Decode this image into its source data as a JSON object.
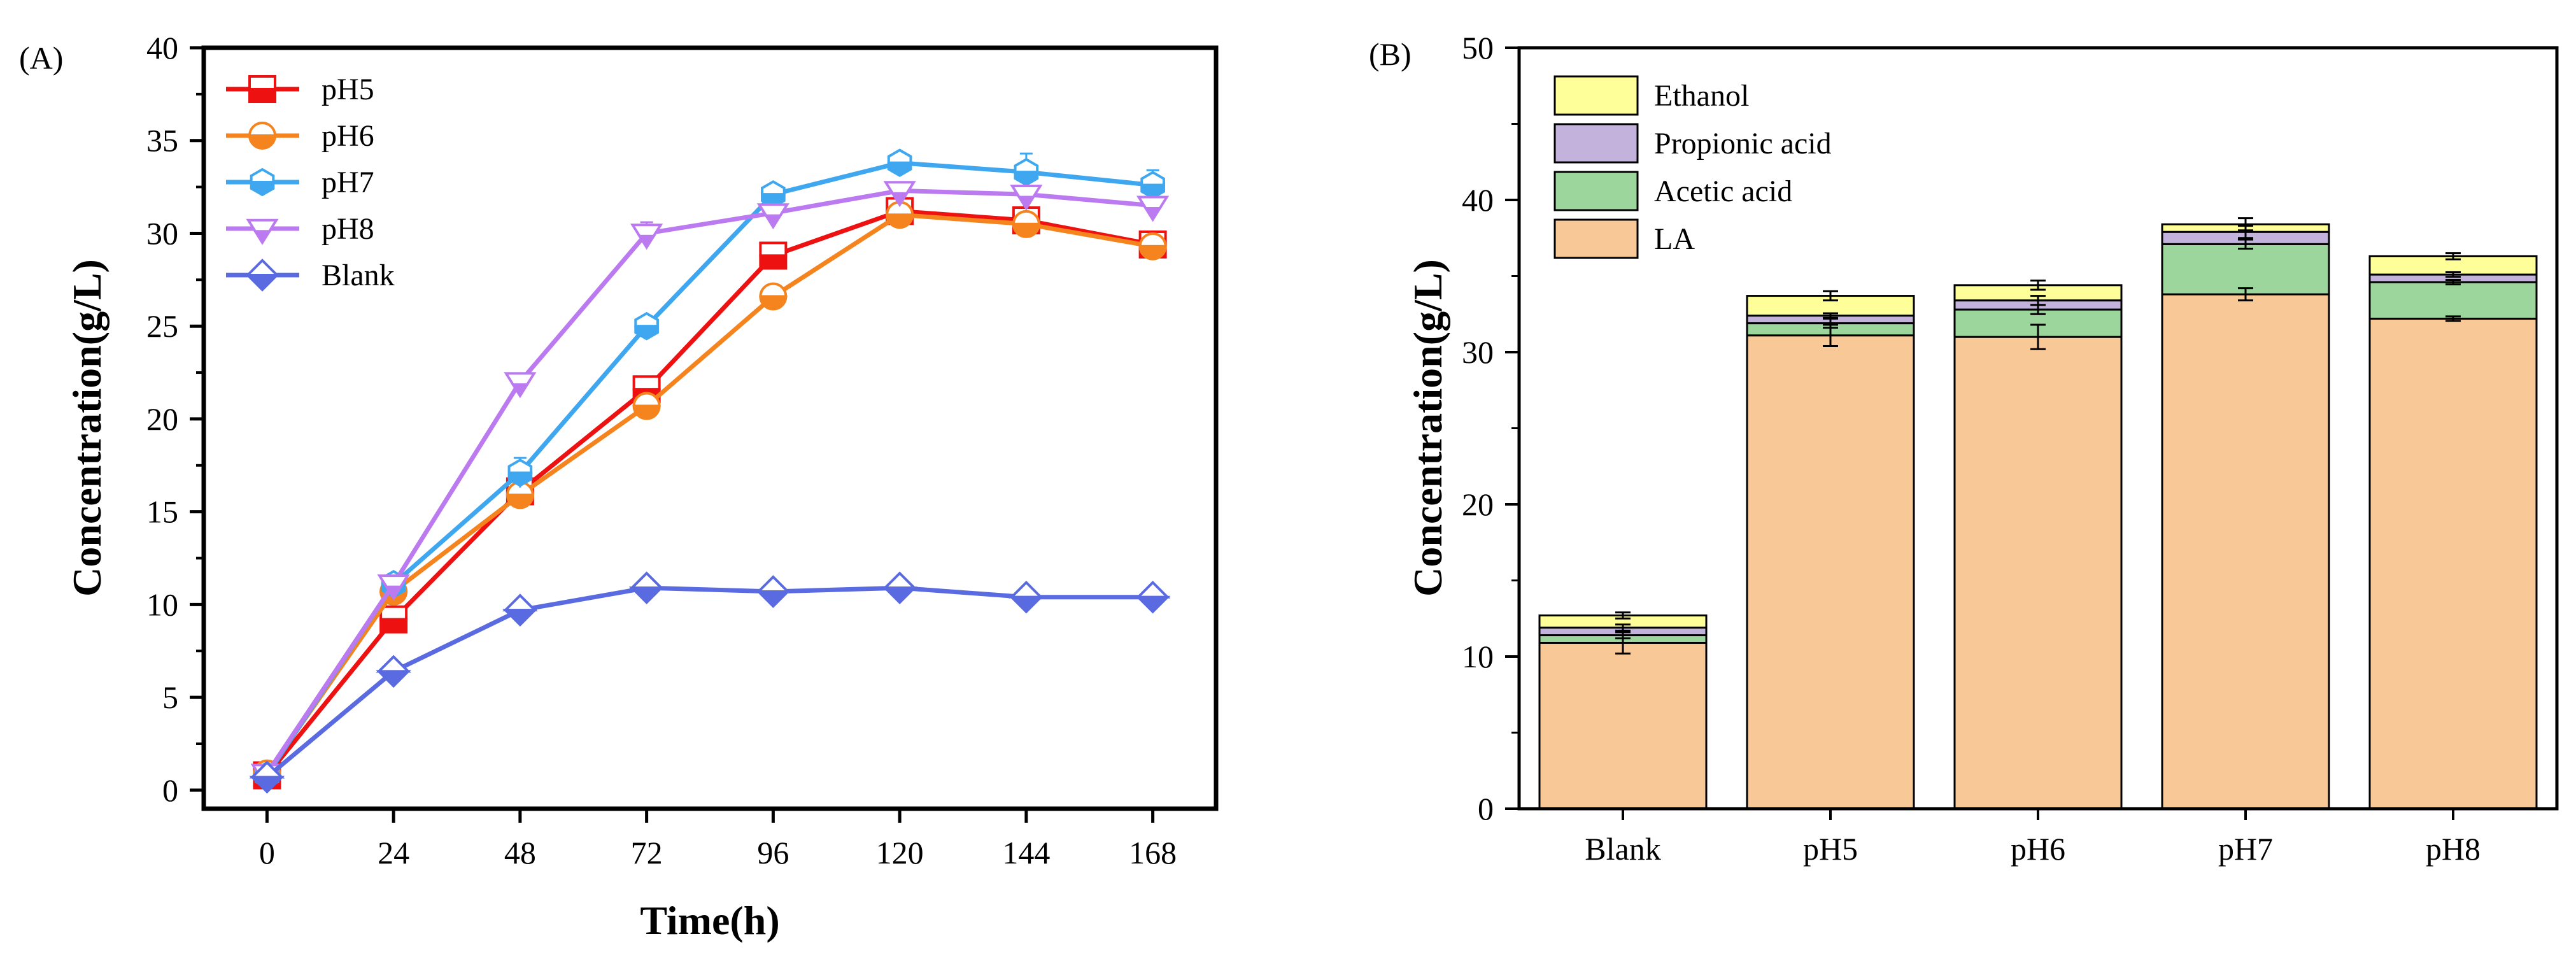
{
  "chart_data": [
    {
      "type": "line",
      "panel_label": "(A)",
      "xlabel": "Time(h)",
      "ylabel": "Concentration(g/L)",
      "x": [
        0,
        24,
        48,
        72,
        96,
        120,
        144,
        168
      ],
      "xticks": [
        "0",
        "24",
        "48",
        "72",
        "96",
        "120",
        "144",
        "168"
      ],
      "xlim": [
        -12,
        180
      ],
      "ylim": [
        -1,
        40
      ],
      "yticks": [
        "0",
        "5",
        "10",
        "15",
        "20",
        "25",
        "30",
        "35",
        "40"
      ],
      "legend_position": "top-left",
      "series": [
        {
          "name": "pH5",
          "color": "#ee1111",
          "marker": "square",
          "values": [
            0.8,
            9.2,
            16.1,
            21.6,
            28.8,
            31.2,
            30.7,
            29.4
          ],
          "errors": [
            0.2,
            0.3,
            0.4,
            0.4,
            0.3,
            0.5,
            0.5,
            0.4
          ]
        },
        {
          "name": "pH6",
          "color": "#f5841f",
          "marker": "circle",
          "values": [
            0.9,
            10.7,
            15.9,
            20.7,
            26.6,
            31.0,
            30.5,
            29.3
          ],
          "errors": [
            0.2,
            0.3,
            0.4,
            0.4,
            0.3,
            0.5,
            0.5,
            0.4
          ]
        },
        {
          "name": "pH7",
          "color": "#3ea7f0",
          "marker": "hexagon",
          "values": [
            0.8,
            11.1,
            17.1,
            25.0,
            32.1,
            33.8,
            33.3,
            32.6
          ],
          "errors": [
            0.2,
            0.3,
            0.8,
            0.4,
            0.4,
            0.4,
            1.0,
            0.8
          ]
        },
        {
          "name": "pH8",
          "color": "#bb7af0",
          "marker": "triangle-down",
          "values": [
            0.9,
            11.1,
            22.0,
            30.0,
            31.1,
            32.3,
            32.1,
            31.5
          ],
          "errors": [
            0.2,
            0.3,
            0.3,
            0.6,
            0.4,
            0.4,
            0.4,
            0.4
          ]
        },
        {
          "name": "Blank",
          "color": "#5a6ae0",
          "marker": "diamond",
          "values": [
            0.7,
            6.4,
            9.7,
            10.9,
            10.7,
            10.9,
            10.4,
            10.4
          ],
          "errors": [
            0.2,
            0.2,
            0.3,
            0.3,
            0.3,
            0.5,
            0.3,
            0.3
          ]
        }
      ]
    },
    {
      "type": "stacked-bar",
      "panel_label": "(B)",
      "xlabel": "",
      "ylabel": "Concentration(g/L)",
      "categories": [
        "Blank",
        "pH5",
        "pH6",
        "pH7",
        "pH8"
      ],
      "ylim": [
        0,
        50
      ],
      "yticks": [
        "0",
        "10",
        "20",
        "30",
        "40",
        "50"
      ],
      "legend_position": "top-left",
      "legend_order": [
        "Ethanol",
        "Propionic acid",
        "Acetic acid",
        "LA"
      ],
      "series": [
        {
          "name": "LA",
          "color": "#f9c897",
          "values": [
            10.9,
            31.1,
            31.0,
            33.8,
            32.2
          ],
          "errors": [
            0.7,
            0.7,
            0.8,
            0.4,
            0.15
          ]
        },
        {
          "name": "Acetic acid",
          "color": "#9cd69c",
          "values": [
            0.5,
            0.8,
            1.8,
            3.3,
            2.4
          ],
          "errors": [
            0.2,
            0.3,
            0.3,
            0.3,
            0.15
          ]
        },
        {
          "name": "Propionic acid",
          "color": "#c2b2dc",
          "values": [
            0.5,
            0.5,
            0.6,
            0.8,
            0.5
          ],
          "errors": [
            0.2,
            0.15,
            0.3,
            0.4,
            0.15
          ]
        },
        {
          "name": "Ethanol",
          "color": "#ffff99",
          "values": [
            0.8,
            1.3,
            1.0,
            0.5,
            1.2
          ],
          "errors": [
            0.2,
            0.3,
            0.3,
            0.4,
            0.2
          ]
        }
      ]
    }
  ]
}
